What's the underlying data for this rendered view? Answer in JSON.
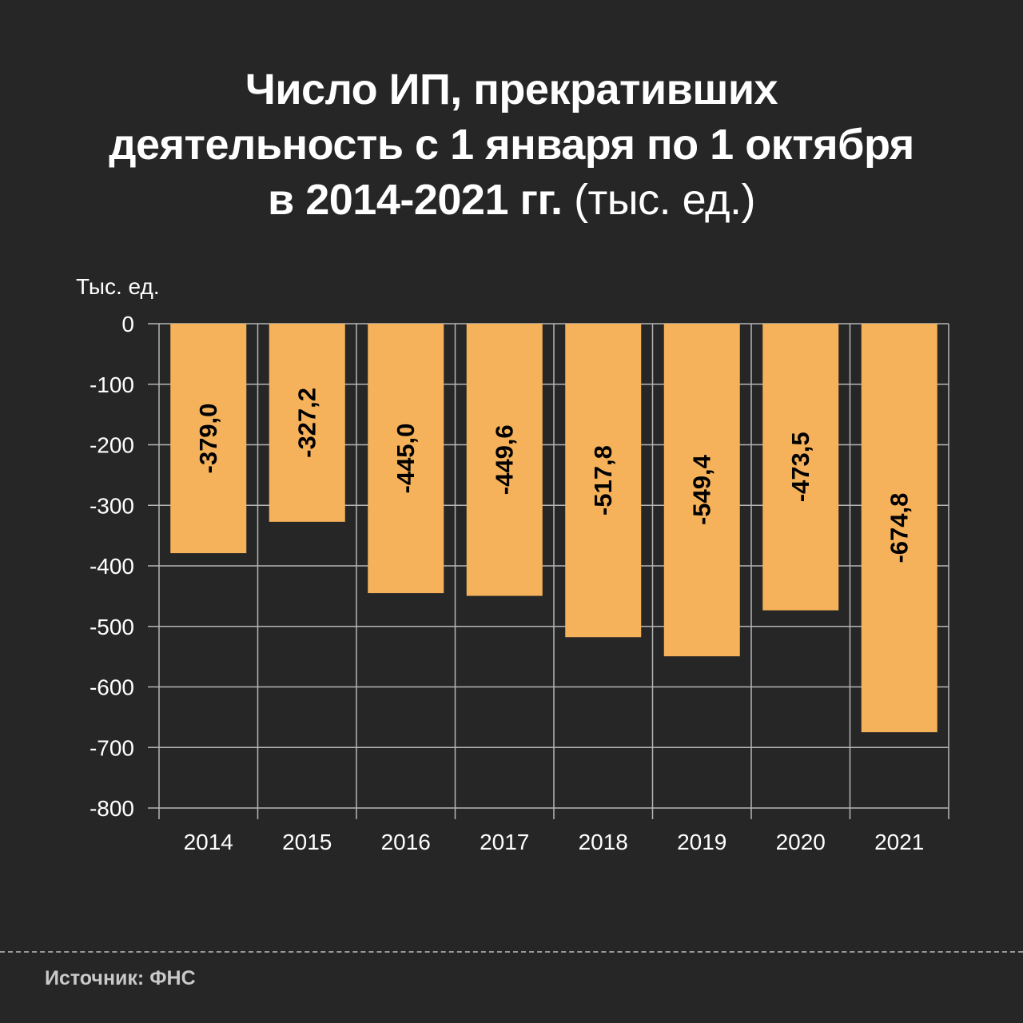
{
  "title": {
    "line1": "Число ИП, прекративших",
    "line2": "деятельность с 1 января по 1 октября",
    "line3": "в 2014-2021 гг.",
    "unit": "(тыс. ед.)"
  },
  "source": "Источник: ФНС",
  "colors": {
    "background": "#262626",
    "bar": "#f5b25a",
    "grid": "#b5b5b5",
    "text": "#ffffff",
    "label": "#000000"
  },
  "chart_data": {
    "type": "bar",
    "title": "Число ИП, прекративших деятельность с 1 января по 1 октября в 2014-2021 гг. (тыс. ед.)",
    "xlabel": "",
    "ylabel": "Тыс. ед.",
    "ylim": [
      -800,
      0
    ],
    "yticks": [
      0,
      -100,
      -200,
      -300,
      -400,
      -500,
      -600,
      -700,
      -800
    ],
    "grid": true,
    "categories": [
      "2014",
      "2015",
      "2016",
      "2017",
      "2018",
      "2019",
      "2020",
      "2021"
    ],
    "values": [
      -379.0,
      -327.2,
      -445.0,
      -449.6,
      -517.8,
      -549.4,
      -473.5,
      -674.8
    ],
    "value_labels": [
      "-379,0",
      "-327,2",
      "-445,0",
      "-449,6",
      "-517,8",
      "-549,4",
      "-473,5",
      "-674,8"
    ]
  }
}
